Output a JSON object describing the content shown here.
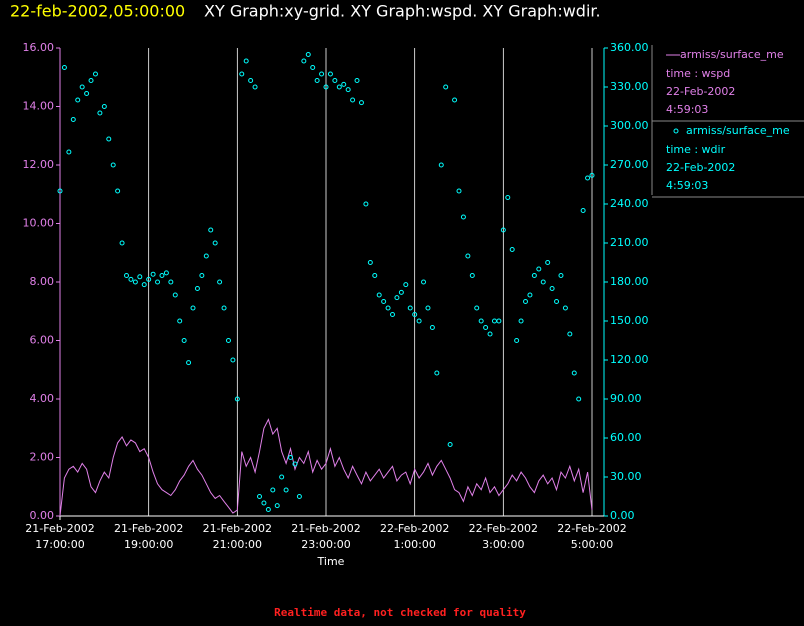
{
  "chart_data": {
    "type": "line-scatter",
    "title_time": "22-feb-2002,05:00:00",
    "title": "XY Graph:xy-grid.  XY Graph:wspd.  XY Graph:wdir.",
    "xlabel": "Time",
    "note": "Realtime data, not checked for quality",
    "grid": "x",
    "xlim": [
      "2002-02-21T17:00",
      "2002-02-22T05:00"
    ],
    "xticks": [
      {
        "value": "2002-02-21T17:00",
        "label": [
          "21-Feb-2002",
          "17:00:00"
        ]
      },
      {
        "value": "2002-02-21T19:00",
        "label": [
          "21-Feb-2002",
          "19:00:00"
        ]
      },
      {
        "value": "2002-02-21T21:00",
        "label": [
          "21-Feb-2002",
          "21:00:00"
        ]
      },
      {
        "value": "2002-02-21T23:00",
        "label": [
          "21-Feb-2002",
          "23:00:00"
        ]
      },
      {
        "value": "2002-02-22T01:00",
        "label": [
          "22-Feb-2002",
          "1:00:00"
        ]
      },
      {
        "value": "2002-02-22T03:00",
        "label": [
          "22-Feb-2002",
          "3:00:00"
        ]
      },
      {
        "value": "2002-02-22T05:00",
        "label": [
          "22-Feb-2002",
          "5:00:00"
        ]
      }
    ],
    "ylim": [
      0,
      16
    ],
    "yticks": [
      {
        "value": 0,
        "label": "0.00"
      },
      {
        "value": 2,
        "label": "2.00"
      },
      {
        "value": 4,
        "label": "4.00"
      },
      {
        "value": 6,
        "label": "6.00"
      },
      {
        "value": 8,
        "label": "8.00"
      },
      {
        "value": 10,
        "label": "10.00"
      },
      {
        "value": 12,
        "label": "12.00"
      },
      {
        "value": 14,
        "label": "14.00"
      },
      {
        "value": 16,
        "label": "16.00"
      }
    ],
    "y2lim": [
      0,
      360
    ],
    "y2ticks": [
      {
        "value": 0,
        "label": "0.00"
      },
      {
        "value": 30,
        "label": "30.00"
      },
      {
        "value": 60,
        "label": "60.00"
      },
      {
        "value": 90,
        "label": "90.00"
      },
      {
        "value": 120,
        "label": "120.00"
      },
      {
        "value": 150,
        "label": "150.00"
      },
      {
        "value": 180,
        "label": "180.00"
      },
      {
        "value": 210,
        "label": "210.00"
      },
      {
        "value": 240,
        "label": "240.00"
      },
      {
        "value": 270,
        "label": "270.00"
      },
      {
        "value": 300,
        "label": "300.00"
      },
      {
        "value": 330,
        "label": "330.00"
      },
      {
        "value": 360,
        "label": "360.00"
      }
    ],
    "x": [
      "2002-02-21T17:00",
      "2002-02-21T17:06",
      "2002-02-21T17:12",
      "2002-02-21T17:18",
      "2002-02-21T17:24",
      "2002-02-21T17:30",
      "2002-02-21T17:36",
      "2002-02-21T17:42",
      "2002-02-21T17:48",
      "2002-02-21T17:54",
      "2002-02-21T18:00",
      "2002-02-21T18:06",
      "2002-02-21T18:12",
      "2002-02-21T18:18",
      "2002-02-21T18:24",
      "2002-02-21T18:30",
      "2002-02-21T18:36",
      "2002-02-21T18:42",
      "2002-02-21T18:48",
      "2002-02-21T18:54",
      "2002-02-21T19:00",
      "2002-02-21T19:06",
      "2002-02-21T19:12",
      "2002-02-21T19:18",
      "2002-02-21T19:24",
      "2002-02-21T19:30",
      "2002-02-21T19:36",
      "2002-02-21T19:42",
      "2002-02-21T19:48",
      "2002-02-21T19:54",
      "2002-02-21T20:00",
      "2002-02-21T20:06",
      "2002-02-21T20:12",
      "2002-02-21T20:18",
      "2002-02-21T20:24",
      "2002-02-21T20:30",
      "2002-02-21T20:36",
      "2002-02-21T20:42",
      "2002-02-21T20:48",
      "2002-02-21T20:54",
      "2002-02-21T21:00",
      "2002-02-21T21:06",
      "2002-02-21T21:12",
      "2002-02-21T21:18",
      "2002-02-21T21:24",
      "2002-02-21T21:30",
      "2002-02-21T21:36",
      "2002-02-21T21:42",
      "2002-02-21T21:48",
      "2002-02-21T21:54",
      "2002-02-21T22:00",
      "2002-02-21T22:06",
      "2002-02-21T22:12",
      "2002-02-21T22:18",
      "2002-02-21T22:24",
      "2002-02-21T22:30",
      "2002-02-21T22:36",
      "2002-02-21T22:42",
      "2002-02-21T22:48",
      "2002-02-21T22:54",
      "2002-02-21T23:00",
      "2002-02-21T23:06",
      "2002-02-21T23:12",
      "2002-02-21T23:18",
      "2002-02-21T23:24",
      "2002-02-21T23:30",
      "2002-02-21T23:36",
      "2002-02-21T23:42",
      "2002-02-21T23:48",
      "2002-02-21T23:54",
      "2002-02-22T00:00",
      "2002-02-22T00:06",
      "2002-02-22T00:12",
      "2002-02-22T00:18",
      "2002-02-22T00:24",
      "2002-02-22T00:30",
      "2002-02-22T00:36",
      "2002-02-22T00:42",
      "2002-02-22T00:48",
      "2002-02-22T00:54",
      "2002-02-22T01:00",
      "2002-02-22T01:06",
      "2002-02-22T01:12",
      "2002-02-22T01:18",
      "2002-02-22T01:24",
      "2002-02-22T01:30",
      "2002-02-22T01:36",
      "2002-02-22T01:42",
      "2002-02-22T01:48",
      "2002-02-22T01:54",
      "2002-02-22T02:00",
      "2002-02-22T02:06",
      "2002-02-22T02:12",
      "2002-02-22T02:18",
      "2002-02-22T02:24",
      "2002-02-22T02:30",
      "2002-02-22T02:36",
      "2002-02-22T02:42",
      "2002-02-22T02:48",
      "2002-02-22T02:54",
      "2002-02-22T03:00",
      "2002-02-22T03:06",
      "2002-02-22T03:12",
      "2002-02-22T03:18",
      "2002-02-22T03:24",
      "2002-02-22T03:30",
      "2002-02-22T03:36",
      "2002-02-22T03:42",
      "2002-02-22T03:48",
      "2002-02-22T03:54",
      "2002-02-22T04:00",
      "2002-02-22T04:06",
      "2002-02-22T04:12",
      "2002-02-22T04:18",
      "2002-02-22T04:24",
      "2002-02-22T04:30",
      "2002-02-22T04:36",
      "2002-02-22T04:42",
      "2002-02-22T04:48",
      "2002-02-22T04:54",
      "2002-02-22T05:00"
    ],
    "series": [
      {
        "name": "armiss/surface_me",
        "legend_lines": [
          "time : wspd",
          "22-Feb-2002",
          "4:59:03"
        ],
        "color": "#e080e8",
        "mark": "line",
        "values": [
          0,
          1.3,
          1.6,
          1.7,
          1.5,
          1.8,
          1.6,
          1.0,
          0.8,
          1.2,
          1.5,
          1.3,
          2.0,
          2.5,
          2.7,
          2.4,
          2.6,
          2.5,
          2.2,
          2.3,
          2.0,
          1.5,
          1.1,
          0.9,
          0.8,
          0.7,
          0.9,
          1.2,
          1.4,
          1.7,
          1.9,
          1.6,
          1.4,
          1.1,
          0.8,
          0.6,
          0.7,
          0.5,
          0.3,
          0.1,
          0.2,
          2.2,
          1.7,
          2.0,
          1.5,
          2.2,
          3.0,
          3.3,
          2.8,
          3.0,
          2.2,
          1.8,
          2.3,
          1.6,
          2.0,
          1.8,
          2.2,
          1.5,
          1.9,
          1.6,
          1.8,
          2.3,
          1.7,
          2.0,
          1.6,
          1.3,
          1.7,
          1.4,
          1.1,
          1.5,
          1.2,
          1.4,
          1.6,
          1.3,
          1.5,
          1.7,
          1.2,
          1.4,
          1.5,
          1.1,
          1.6,
          1.3,
          1.5,
          1.8,
          1.4,
          1.7,
          1.9,
          1.6,
          1.3,
          0.9,
          0.8,
          0.5,
          1.0,
          0.7,
          1.1,
          0.9,
          1.3,
          0.8,
          1.0,
          0.7,
          0.9,
          1.1,
          1.4,
          1.2,
          1.5,
          1.3,
          1.0,
          0.8,
          1.2,
          1.4,
          1.1,
          1.3,
          0.9,
          1.5,
          1.3,
          1.7,
          1.2,
          1.6,
          0.8,
          1.5,
          0.2
        ]
      },
      {
        "name": "armiss/surface_me",
        "legend_lines": [
          "time : wdir",
          "22-Feb-2002",
          "4:59:03"
        ],
        "color": "#00ffff",
        "mark": "circle",
        "axis": "y2",
        "values": [
          250,
          345,
          280,
          305,
          320,
          330,
          325,
          335,
          340,
          310,
          315,
          290,
          270,
          250,
          210,
          185,
          182,
          180,
          184,
          178,
          182,
          186,
          180,
          185,
          187,
          180,
          170,
          150,
          135,
          118,
          160,
          175,
          185,
          200,
          220,
          210,
          180,
          160,
          135,
          120,
          90,
          340,
          350,
          335,
          330,
          15,
          10,
          5,
          20,
          8,
          30,
          20,
          45,
          40,
          15,
          350,
          355,
          345,
          335,
          340,
          330,
          340,
          335,
          330,
          332,
          328,
          320,
          335,
          318,
          240,
          195,
          185,
          170,
          165,
          160,
          155,
          168,
          172,
          178,
          160,
          155,
          150,
          180,
          160,
          145,
          110,
          270,
          330,
          55,
          320,
          250,
          230,
          200,
          185,
          160,
          150,
          145,
          140,
          150,
          150,
          220,
          245,
          205,
          135,
          150,
          165,
          170,
          185,
          190,
          180,
          195,
          175,
          165,
          185,
          160,
          140,
          110,
          90,
          235,
          260,
          262
        ]
      }
    ]
  }
}
